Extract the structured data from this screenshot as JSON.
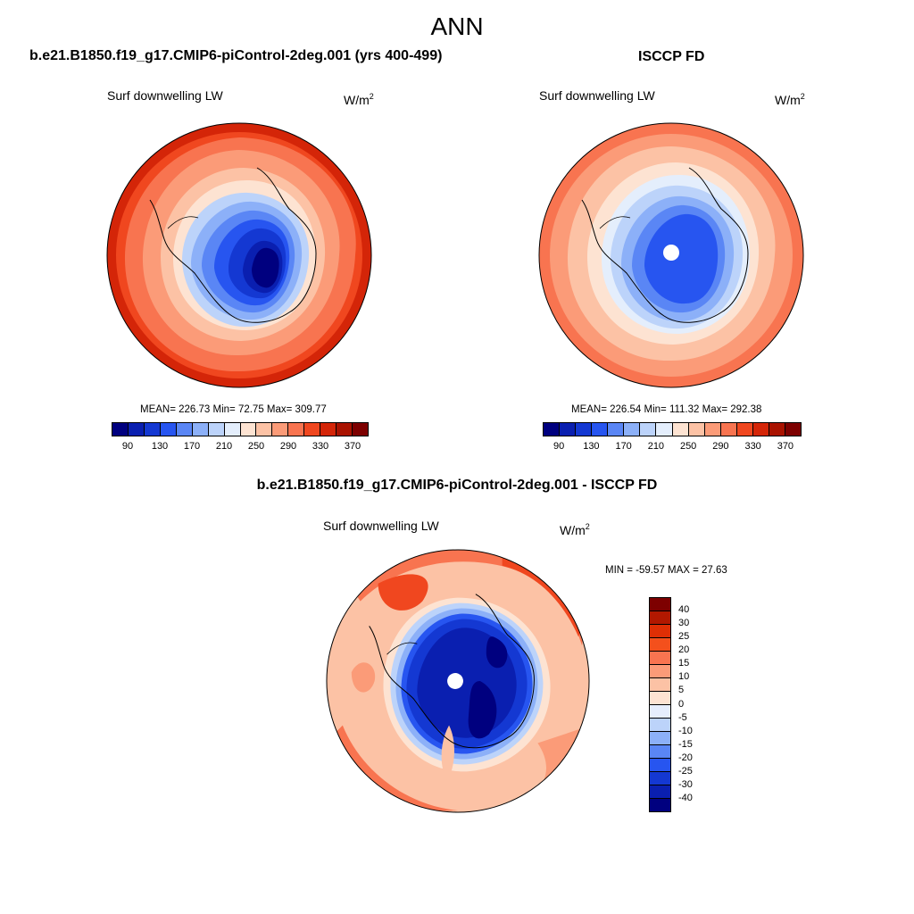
{
  "main_title": "ANN",
  "panels": {
    "model": {
      "title": "b.e21.B1850.f19_g17.CMIP6-piControl-2deg.001 (yrs 400-499)",
      "variable": "Surf downwelling LW",
      "units_base": "W/m",
      "units_exp": "2",
      "stats": "MEAN= 226.73  Min=  72.75  Max= 309.77"
    },
    "obs": {
      "title": "ISCCP FD",
      "variable": "Surf downwelling LW",
      "units_base": "W/m",
      "units_exp": "2",
      "stats": "MEAN= 226.54  Min= 111.32  Max= 292.38"
    },
    "diff": {
      "title": "b.e21.B1850.f19_g17.CMIP6-piControl-2deg.001 - ISCCP FD",
      "variable": "Surf downwelling LW",
      "units_base": "W/m",
      "units_exp": "2",
      "stats": "MIN = -59.57 MAX =  27.63"
    }
  },
  "colorbar_abs": {
    "ticks": [
      "90",
      "130",
      "170",
      "210",
      "250",
      "290",
      "330",
      "370"
    ],
    "colors": [
      "#00007f",
      "#0a1fb0",
      "#1438d2",
      "#2755f0",
      "#5a86f5",
      "#8cb0f8",
      "#bcd3fa",
      "#e4eefc",
      "#fde3d2",
      "#fcc2a5",
      "#fb9b78",
      "#f87450",
      "#f0471f",
      "#d42508",
      "#a91200",
      "#7d0000"
    ]
  },
  "colorbar_diff": {
    "labels": [
      "40",
      "30",
      "25",
      "20",
      "15",
      "10",
      "5",
      "0",
      "-5",
      "-10",
      "-15",
      "-20",
      "-25",
      "-30",
      "-40"
    ],
    "colors": [
      "#7d0000",
      "#b21800",
      "#df2f05",
      "#f4501c",
      "#f87450",
      "#fb9b78",
      "#fcc2a5",
      "#fde3d2",
      "#e6eefd",
      "#bcd3fa",
      "#8cb0f8",
      "#5a86f5",
      "#2755f0",
      "#1438d2",
      "#0a1fb0",
      "#00007f"
    ]
  }
}
